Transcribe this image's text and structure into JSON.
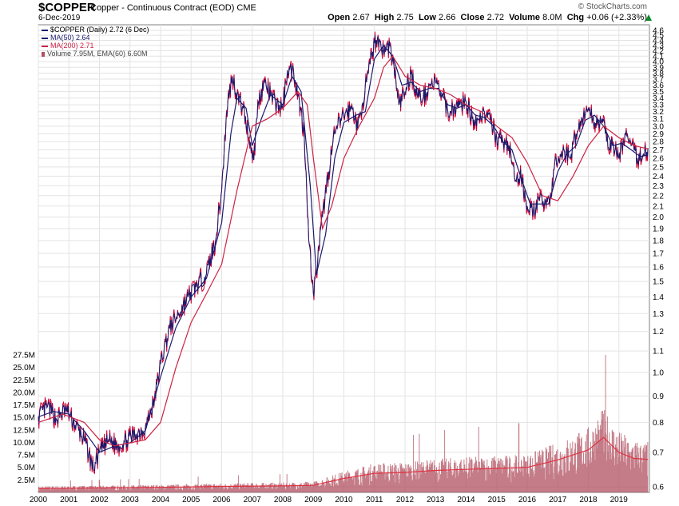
{
  "header": {
    "symbol": "$COPPER",
    "name": "Copper - Continuous Contract (EOD) CME",
    "date": "6-Dec-2019",
    "brand": "© StockCharts.com",
    "open_label": "Open",
    "open": "2.67",
    "high_label": "High",
    "high": "2.75",
    "low_label": "Low",
    "low": "2.66",
    "close_label": "Close",
    "close": "2.72",
    "volume_label": "Volume",
    "volume": "8.0M",
    "chg_label": "Chg",
    "chg": "+0.06 (+2.33%)"
  },
  "legend": {
    "price": "$COPPER (Daily) 2.72 (6 Dec)",
    "ma50": "MA(50) 2.64",
    "ma200": "MA(200) 2.71",
    "volume": "Volume 7.95M, EMA(60) 6.60M"
  },
  "colors": {
    "price": "#1a1a6e",
    "price_dn": "#cc0033",
    "ma50": "#1a1a6e",
    "ma200": "#cc2244",
    "volume": "#b05060",
    "volume_ema": "#e03040",
    "grid": "#e3e3e3",
    "up_arrow": "#0a8a2a"
  },
  "chart_data": {
    "type": "line",
    "title": "$COPPER Copper - Continuous Contract (EOD) CME",
    "x_range": [
      2000.0,
      2020.0
    ],
    "y_price_range": [
      0.6,
      4.6
    ],
    "y_price_scale": "log",
    "price_ticks": [
      "0.6",
      "0.7",
      "0.8",
      "0.9",
      "1.0",
      "1.1",
      "1.2",
      "1.3",
      "1.4",
      "1.5",
      "1.6",
      "1.7",
      "1.8",
      "1.9",
      "2.0",
      "2.1",
      "2.2",
      "2.3",
      "2.4",
      "2.5",
      "2.6",
      "2.7",
      "2.8",
      "2.9",
      "3.0",
      "3.1",
      "3.2",
      "3.3",
      "3.4",
      "3.5",
      "3.6",
      "3.7",
      "3.8",
      "3.9",
      "4.0",
      "4.1",
      "4.2",
      "4.3",
      "4.4",
      "4.5",
      "4.6"
    ],
    "volume_ticks": [
      "2.5M",
      "5.0M",
      "7.5M",
      "10.0M",
      "12.5M",
      "15.0M",
      "17.5M",
      "20.0M",
      "22.5M",
      "25.0M",
      "27.5M"
    ],
    "volume_range_m": [
      0,
      27.5
    ],
    "x_ticks": [
      "2000",
      "2001",
      "2002",
      "2003",
      "2004",
      "2005",
      "2006",
      "2007",
      "2008",
      "2009",
      "2010",
      "2011",
      "2012",
      "2013",
      "2014",
      "2015",
      "2016",
      "2017",
      "2018",
      "2019"
    ],
    "series": [
      {
        "name": "$COPPER (Daily)",
        "x": [
          2000.0,
          2000.3,
          2000.6,
          2000.9,
          2001.2,
          2001.5,
          2001.8,
          2002.0,
          2002.3,
          2002.6,
          2002.9,
          2003.2,
          2003.5,
          2003.8,
          2004.0,
          2004.3,
          2004.6,
          2004.9,
          2005.2,
          2005.5,
          2005.8,
          2006.0,
          2006.2,
          2006.35,
          2006.5,
          2006.7,
          2006.9,
          2007.05,
          2007.2,
          2007.4,
          2007.6,
          2007.8,
          2008.0,
          2008.15,
          2008.35,
          2008.5,
          2008.7,
          2008.85,
          2009.0,
          2009.1,
          2009.3,
          2009.5,
          2009.7,
          2009.9,
          2010.1,
          2010.3,
          2010.45,
          2010.6,
          2010.8,
          2011.0,
          2011.1,
          2011.3,
          2011.5,
          2011.7,
          2011.8,
          2012.0,
          2012.2,
          2012.4,
          2012.6,
          2012.8,
          2013.0,
          2013.2,
          2013.4,
          2013.6,
          2013.8,
          2014.0,
          2014.2,
          2014.4,
          2014.6,
          2014.8,
          2015.0,
          2015.2,
          2015.4,
          2015.6,
          2015.8,
          2016.0,
          2016.2,
          2016.4,
          2016.6,
          2016.8,
          2016.9,
          2017.0,
          2017.2,
          2017.4,
          2017.6,
          2017.8,
          2018.0,
          2018.2,
          2018.45,
          2018.6,
          2018.8,
          2019.0,
          2019.2,
          2019.4,
          2019.6,
          2019.8,
          2019.95
        ],
        "values": [
          0.82,
          0.86,
          0.81,
          0.85,
          0.79,
          0.74,
          0.65,
          0.7,
          0.74,
          0.72,
          0.74,
          0.76,
          0.78,
          0.88,
          1.04,
          1.22,
          1.3,
          1.4,
          1.48,
          1.55,
          1.8,
          2.25,
          3.35,
          3.75,
          3.45,
          3.25,
          2.85,
          2.58,
          3.35,
          3.65,
          3.45,
          3.3,
          3.25,
          3.85,
          3.85,
          3.45,
          2.9,
          1.8,
          1.42,
          1.55,
          2.0,
          2.45,
          2.9,
          3.1,
          3.2,
          3.25,
          2.95,
          3.3,
          3.8,
          4.35,
          4.45,
          4.2,
          4.3,
          3.7,
          3.3,
          3.5,
          3.8,
          3.45,
          3.4,
          3.6,
          3.65,
          3.45,
          3.2,
          3.25,
          3.3,
          3.35,
          3.1,
          3.1,
          3.2,
          3.05,
          2.85,
          2.8,
          2.75,
          2.35,
          2.4,
          2.1,
          2.05,
          2.15,
          2.15,
          2.2,
          2.55,
          2.55,
          2.7,
          2.6,
          2.9,
          3.1,
          3.25,
          3.05,
          3.1,
          2.8,
          2.75,
          2.6,
          2.9,
          2.75,
          2.6,
          2.65,
          2.72
        ]
      },
      {
        "name": "MA(50)",
        "x": [
          2000.0,
          2000.5,
          2001.0,
          2001.5,
          2002.0,
          2002.5,
          2003.0,
          2003.5,
          2004.0,
          2004.5,
          2005.0,
          2005.5,
          2006.0,
          2006.3,
          2006.5,
          2006.8,
          2007.0,
          2007.3,
          2007.6,
          2008.0,
          2008.3,
          2008.6,
          2008.9,
          2009.1,
          2009.4,
          2009.7,
          2010.0,
          2010.4,
          2010.7,
          2011.0,
          2011.3,
          2011.6,
          2011.9,
          2012.2,
          2012.5,
          2012.8,
          2013.1,
          2013.4,
          2013.7,
          2014.0,
          2014.3,
          2014.6,
          2014.9,
          2015.2,
          2015.5,
          2015.8,
          2016.1,
          2016.4,
          2016.7,
          2017.0,
          2017.3,
          2017.6,
          2017.9,
          2018.2,
          2018.5,
          2018.8,
          2019.1,
          2019.4,
          2019.7,
          2019.95
        ],
        "values": [
          0.82,
          0.84,
          0.83,
          0.77,
          0.7,
          0.72,
          0.73,
          0.77,
          0.98,
          1.22,
          1.4,
          1.52,
          1.95,
          2.9,
          3.4,
          3.25,
          2.75,
          3.1,
          3.45,
          3.3,
          3.75,
          3.5,
          2.3,
          1.55,
          1.85,
          2.6,
          3.05,
          3.15,
          3.2,
          4.05,
          4.3,
          4.1,
          3.6,
          3.65,
          3.5,
          3.55,
          3.55,
          3.3,
          3.25,
          3.3,
          3.15,
          3.12,
          3.0,
          2.8,
          2.7,
          2.38,
          2.12,
          2.12,
          2.12,
          2.45,
          2.65,
          2.75,
          3.08,
          3.15,
          3.0,
          2.75,
          2.78,
          2.7,
          2.62,
          2.64
        ]
      },
      {
        "name": "MA(200)",
        "x": [
          2000.0,
          2000.8,
          2001.5,
          2002.0,
          2002.5,
          2003.0,
          2003.5,
          2004.0,
          2004.5,
          2005.0,
          2005.5,
          2006.0,
          2006.5,
          2007.0,
          2007.5,
          2008.0,
          2008.5,
          2008.8,
          2009.0,
          2009.3,
          2009.6,
          2010.0,
          2010.5,
          2011.0,
          2011.3,
          2011.6,
          2012.0,
          2012.5,
          2013.0,
          2013.5,
          2014.0,
          2014.5,
          2015.0,
          2015.5,
          2016.0,
          2016.5,
          2017.0,
          2017.5,
          2018.0,
          2018.5,
          2019.0,
          2019.5,
          2019.95
        ],
        "values": [
          0.8,
          0.83,
          0.8,
          0.74,
          0.72,
          0.73,
          0.74,
          0.8,
          1.02,
          1.25,
          1.42,
          1.62,
          2.25,
          3.0,
          3.1,
          3.25,
          3.5,
          3.3,
          2.6,
          1.9,
          2.1,
          2.6,
          3.0,
          3.4,
          3.9,
          4.1,
          3.75,
          3.6,
          3.55,
          3.45,
          3.3,
          3.2,
          3.0,
          2.85,
          2.55,
          2.2,
          2.15,
          2.4,
          2.75,
          3.0,
          2.85,
          2.75,
          2.71
        ]
      },
      {
        "name": "Volume EMA(60) (M)",
        "x": [
          2000.0,
          2002.0,
          2004.0,
          2006.0,
          2008.0,
          2009.0,
          2010.0,
          2011.0,
          2012.0,
          2013.0,
          2014.0,
          2015.0,
          2016.0,
          2017.0,
          2017.5,
          2018.0,
          2018.5,
          2019.0,
          2019.5,
          2019.95
        ],
        "values": [
          0.8,
          0.9,
          1.0,
          1.2,
          1.3,
          1.4,
          2.8,
          3.8,
          4.0,
          4.4,
          4.6,
          4.8,
          5.0,
          6.5,
          7.5,
          8.5,
          11.0,
          8.0,
          6.8,
          6.6
        ]
      }
    ]
  }
}
